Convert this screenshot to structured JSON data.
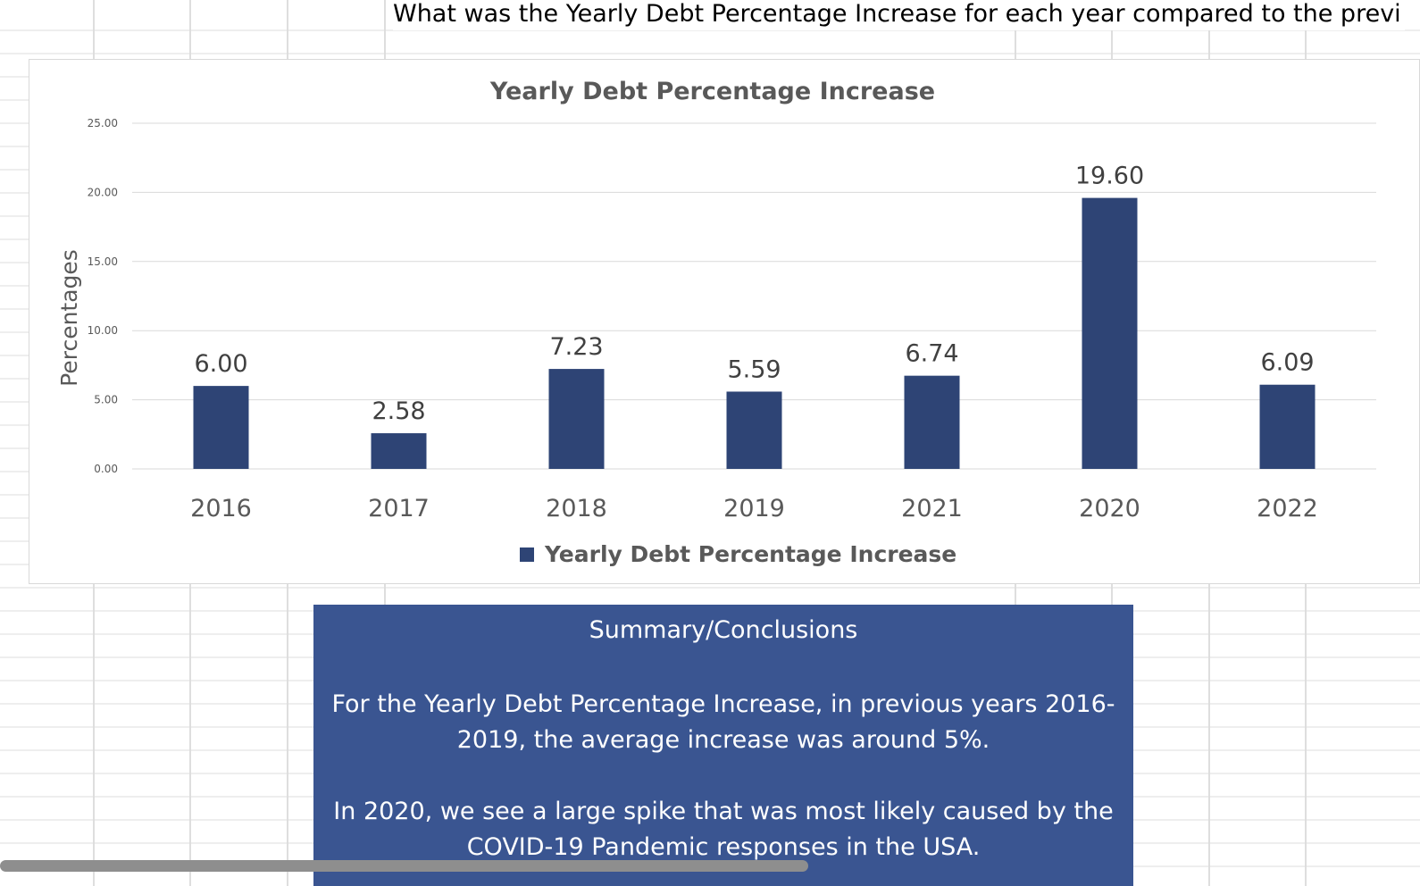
{
  "sheet": {
    "question": "What was the Yearly Debt Percentage Increase for each year compared to the previ"
  },
  "chart_data": {
    "type": "bar",
    "title": "Yearly Debt Percentage Increase",
    "ylabel": "Percentages",
    "xlabel": "",
    "categories": [
      "2016",
      "2017",
      "2018",
      "2019",
      "2021",
      "2020",
      "2022"
    ],
    "series": [
      {
        "name": "Yearly Debt Percentage Increase",
        "values": [
          6.0,
          2.58,
          7.23,
          5.59,
          6.74,
          19.6,
          6.09
        ]
      }
    ],
    "data_labels": [
      "6.00",
      "2.58",
      "7.23",
      "5.59",
      "6.74",
      "19.60",
      "6.09"
    ],
    "ylim": [
      0,
      25
    ],
    "yticks": [
      "0.00",
      "5.00",
      "10.00",
      "15.00",
      "20.00",
      "25.00"
    ],
    "grid": true,
    "legend_position": "bottom",
    "bar_color": "#2e4475"
  },
  "summary": {
    "title": "Summary/Conclusions",
    "paragraph1": "For the Yearly Debt Percentage Increase, in previous years 2016-2019, the average increase was around 5%.",
    "paragraph2": "In 2020, we see a large spike that was most likely caused by the COVID-19 Pandemic responses in the USA."
  },
  "colors": {
    "summary_background": "#3a5591",
    "gridline": "#d9d9d9",
    "text_dark": "#595959"
  }
}
